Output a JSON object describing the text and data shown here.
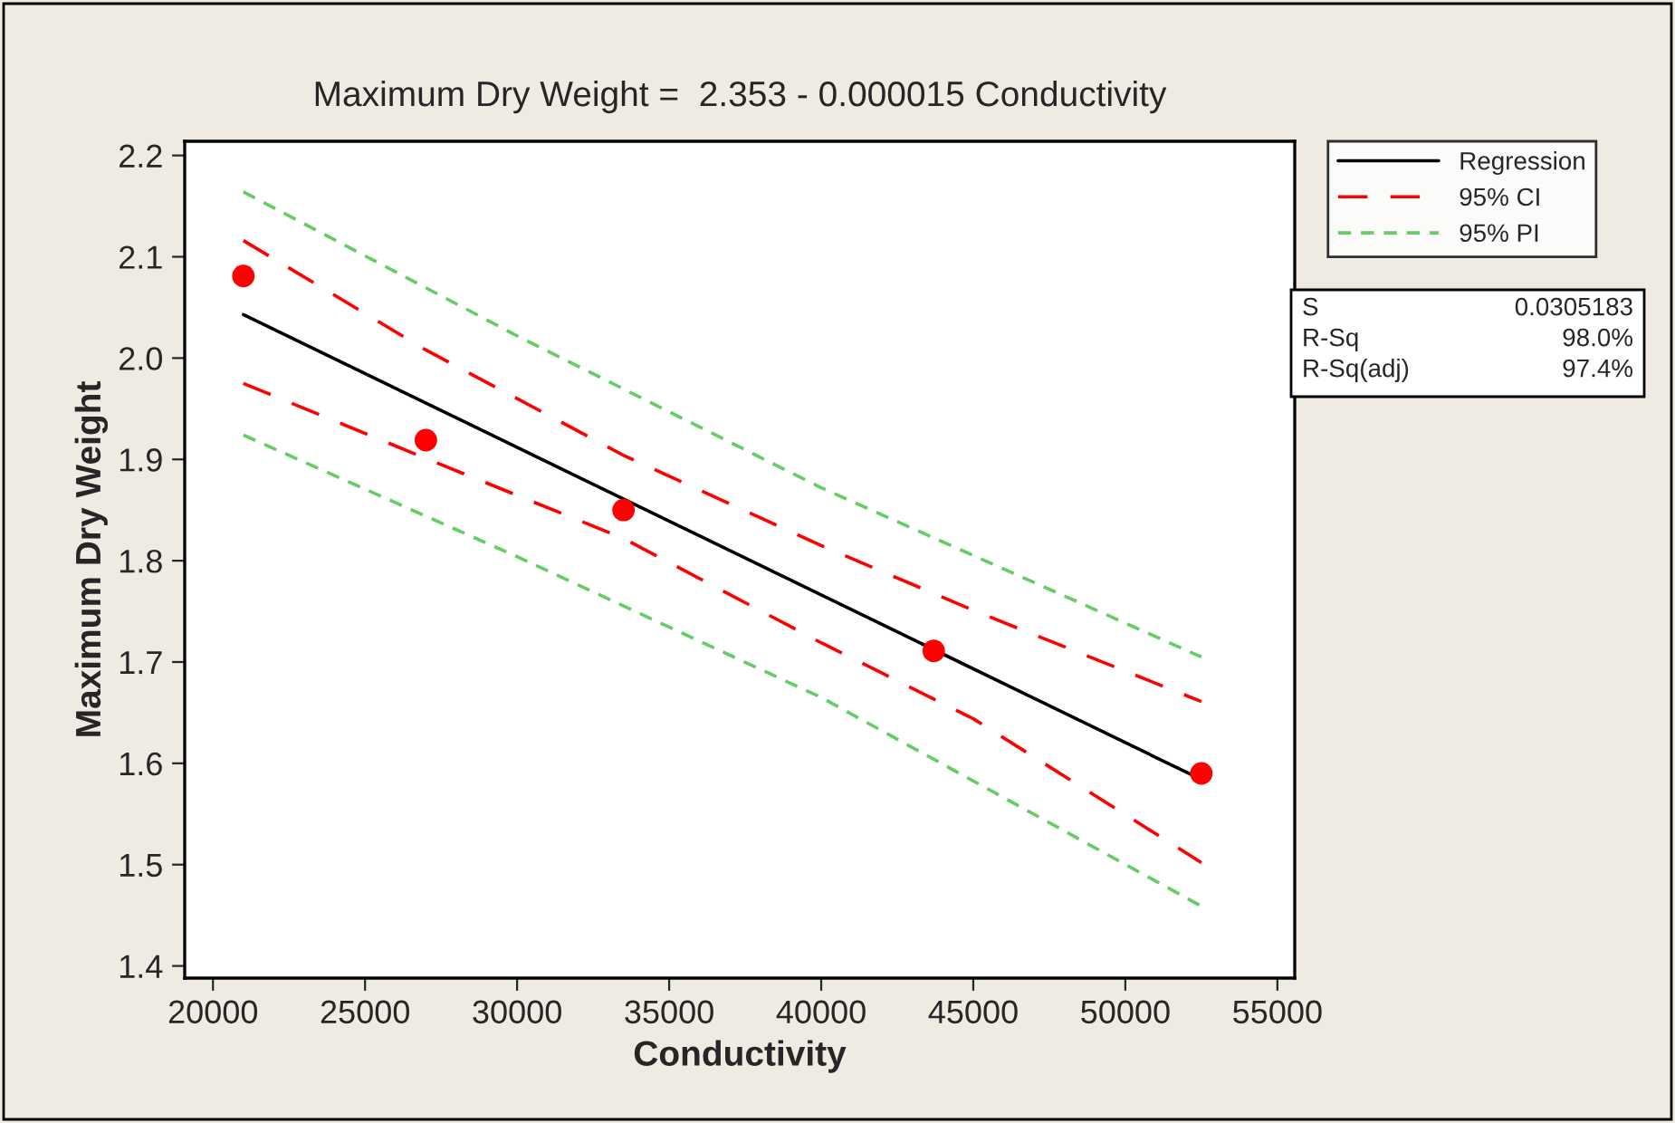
{
  "chart_data": {
    "type": "line",
    "title": "Maximum Dry Weight =  2.353 - 0.000015 Conductivity",
    "xlabel": "Conductivity",
    "ylabel": "Maximum Dry Weight",
    "xlim": [
      19070,
      55570
    ],
    "ylim": [
      1.388,
      2.214
    ],
    "xticks": [
      20000,
      25000,
      30000,
      35000,
      40000,
      45000,
      50000,
      55000
    ],
    "yticks": [
      1.4,
      1.5,
      1.6,
      1.7,
      1.8,
      1.9,
      {
        "value": 2.0,
        "label": "2.0"
      },
      2.1,
      2.2
    ],
    "grid": false,
    "legend": "right",
    "series": [
      {
        "type": "scatter",
        "color": "#ff0000",
        "marker": "circle",
        "x": [
          21000,
          27000,
          33500,
          43700,
          52500
        ],
        "values": [
          2.081,
          1.919,
          1.85,
          1.711,
          1.59
        ]
      },
      {
        "name": "Regression",
        "color": "#000000",
        "line_style": "solid",
        "x": [
          21000,
          52500
        ],
        "values": [
          2.043,
          1.584
        ]
      },
      {
        "name": "95% CI",
        "color": "#ff0000",
        "line_style": "dashed",
        "x": [
          21000,
          27000,
          33500,
          40000,
          45000,
          52500
        ],
        "values": [
          2.116,
          2.008,
          1.904,
          1.815,
          1.751,
          1.661
        ]
      },
      {
        "color": "#ff0000",
        "line_style": "dashed",
        "x": [
          21000,
          27000,
          33500,
          40000,
          45000,
          52500
        ],
        "values": [
          1.975,
          1.901,
          1.822,
          1.719,
          1.644,
          1.502
        ]
      },
      {
        "name": "95% PI",
        "color": "#66cc66",
        "line_style": "dotted",
        "x": [
          21000,
          30000,
          40000,
          52500
        ],
        "values": [
          2.164,
          2.022,
          1.872,
          1.705
        ]
      },
      {
        "color": "#66cc66",
        "line_style": "dotted",
        "x": [
          21000,
          30000,
          40000,
          52500
        ],
        "values": [
          1.924,
          1.804,
          1.665,
          1.459
        ]
      }
    ],
    "annotations": [
      "S",
      "0.0305183",
      "R-Sq",
      "98.0%",
      "R-Sq(adj)",
      "97.4%"
    ]
  }
}
